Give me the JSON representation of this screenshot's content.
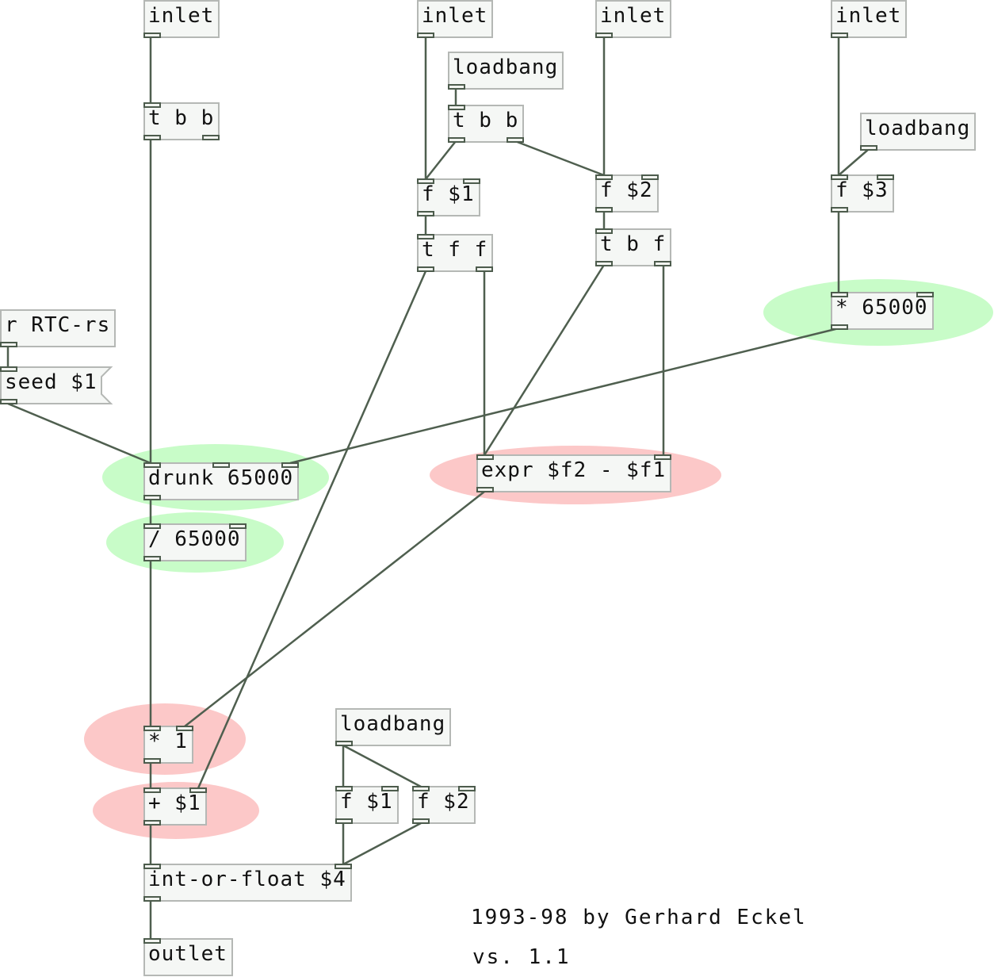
{
  "patch": {
    "highlight_colors": {
      "green": "#b4f5b4",
      "red": "#fbb4b4"
    },
    "objects": {
      "inlet_1": "inlet",
      "t_bb_1": "t b b",
      "inlet_2": "inlet",
      "loadbang_1": "loadbang",
      "t_bb_2": "t b b",
      "inlet_3": "inlet",
      "inlet_4": "inlet",
      "loadbang_2": "loadbang",
      "f_1": "f $1",
      "f_2": "f $2",
      "f_3": "f $3",
      "t_ff": "t f f",
      "t_bf": "t b f",
      "r_rtc": "r RTC-rs",
      "seed_msg": "seed $1",
      "mul_65000": "* 65000",
      "drunk": "drunk 65000",
      "expr": "expr $f2 - $f1",
      "div_65000": "/ 65000",
      "loadbang_3": "loadbang",
      "mul_1": "* 1",
      "add_1": "+ $1",
      "f_4": "f $1",
      "f_5": "f $2",
      "int_or_float": "int-or-float $4",
      "outlet": "outlet"
    },
    "credits": {
      "author": "1993-98 by Gerhard Eckel",
      "version": "vs. 1.1"
    }
  }
}
